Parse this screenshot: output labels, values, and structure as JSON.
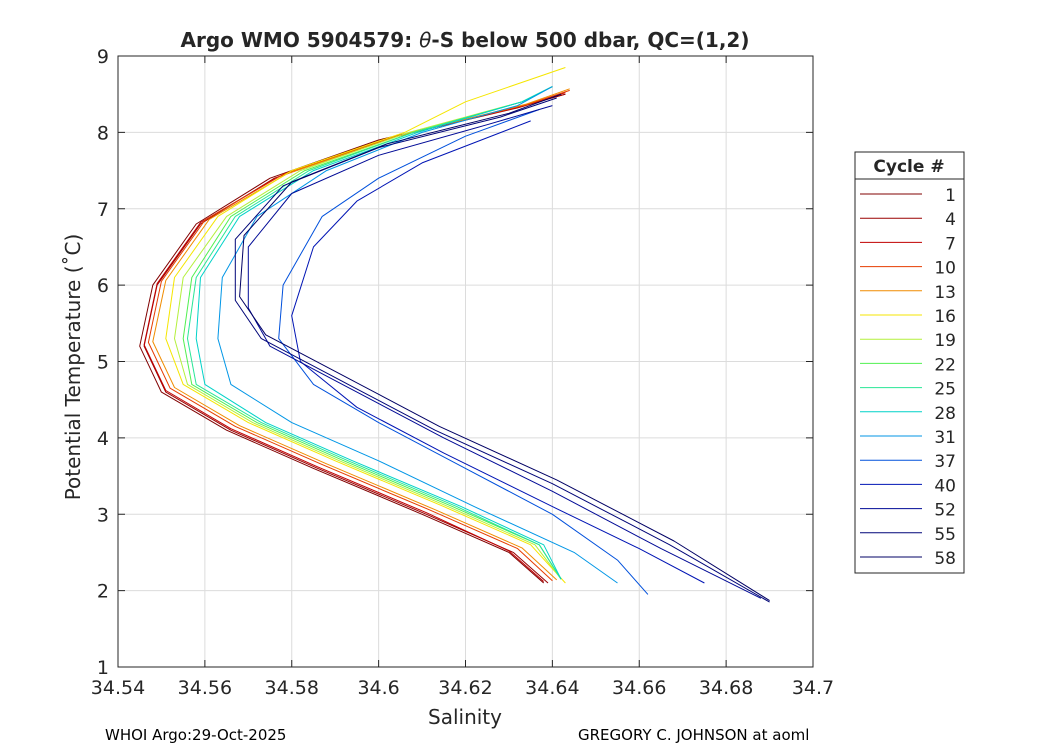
{
  "chart_data": {
    "type": "line",
    "title_parts": [
      "Argo WMO 5904579: ",
      "θ",
      "-S below 500 dbar,  QC=(1,2)"
    ],
    "xlabel": "Salinity",
    "ylabel": "Potential Temperature (˚C)",
    "xlim": [
      34.54,
      34.7
    ],
    "ylim": [
      1,
      9
    ],
    "xticks": [
      34.54,
      34.56,
      34.58,
      34.6,
      34.62,
      34.64,
      34.66,
      34.68,
      34.7
    ],
    "xtick_labels": [
      "34.54",
      "34.56",
      "34.58",
      "34.6",
      "34.62",
      "34.64",
      "34.66",
      "34.68",
      "34.7"
    ],
    "yticks": [
      1,
      2,
      3,
      4,
      5,
      6,
      7,
      8,
      9
    ],
    "ytick_labels": [
      "1",
      "2",
      "3",
      "4",
      "5",
      "6",
      "7",
      "8",
      "9"
    ],
    "grid": true,
    "legend_title": "Cycle #",
    "legend_position": "outside-right",
    "series": [
      {
        "name": "1",
        "color": "#800000",
        "points": [
          [
            34.643,
            8.5
          ],
          [
            34.63,
            8.3
          ],
          [
            34.6,
            7.9
          ],
          [
            34.575,
            7.4
          ],
          [
            34.558,
            6.8
          ],
          [
            34.548,
            6.0
          ],
          [
            34.545,
            5.2
          ],
          [
            34.55,
            4.6
          ],
          [
            34.565,
            4.1
          ],
          [
            34.585,
            3.6
          ],
          [
            34.61,
            3.0
          ],
          [
            34.63,
            2.5
          ],
          [
            34.638,
            2.1
          ]
        ]
      },
      {
        "name": "4",
        "color": "#9a0000",
        "points": [
          [
            34.643,
            8.5
          ],
          [
            34.632,
            8.32
          ],
          [
            34.602,
            7.92
          ],
          [
            34.576,
            7.4
          ],
          [
            34.559,
            6.8
          ],
          [
            34.549,
            6.0
          ],
          [
            34.546,
            5.2
          ],
          [
            34.551,
            4.6
          ],
          [
            34.566,
            4.1
          ],
          [
            34.586,
            3.6
          ],
          [
            34.611,
            3.0
          ],
          [
            34.631,
            2.5
          ],
          [
            34.639,
            2.1
          ]
        ]
      },
      {
        "name": "7",
        "color": "#c00000",
        "points": [
          [
            34.643,
            8.52
          ],
          [
            34.633,
            8.34
          ],
          [
            34.603,
            7.93
          ],
          [
            34.577,
            7.42
          ],
          [
            34.559,
            6.82
          ],
          [
            34.549,
            6.02
          ],
          [
            34.546,
            5.22
          ],
          [
            34.551,
            4.62
          ],
          [
            34.566,
            4.12
          ],
          [
            34.586,
            3.62
          ],
          [
            34.611,
            3.02
          ],
          [
            34.63,
            2.52
          ],
          [
            34.638,
            2.12
          ]
        ]
      },
      {
        "name": "10",
        "color": "#e63c00",
        "points": [
          [
            34.644,
            8.55
          ],
          [
            34.634,
            8.36
          ],
          [
            34.604,
            7.95
          ],
          [
            34.578,
            7.45
          ],
          [
            34.56,
            6.85
          ],
          [
            34.55,
            6.05
          ],
          [
            34.547,
            5.25
          ],
          [
            34.552,
            4.65
          ],
          [
            34.567,
            4.15
          ],
          [
            34.587,
            3.65
          ],
          [
            34.612,
            3.05
          ],
          [
            34.632,
            2.55
          ],
          [
            34.64,
            2.13
          ]
        ]
      },
      {
        "name": "13",
        "color": "#f08c00",
        "points": [
          [
            34.644,
            8.57
          ],
          [
            34.634,
            8.37
          ],
          [
            34.605,
            7.96
          ],
          [
            34.579,
            7.46
          ],
          [
            34.561,
            6.86
          ],
          [
            34.551,
            6.06
          ],
          [
            34.548,
            5.26
          ],
          [
            34.553,
            4.66
          ],
          [
            34.568,
            4.16
          ],
          [
            34.588,
            3.66
          ],
          [
            34.613,
            3.06
          ],
          [
            34.633,
            2.56
          ],
          [
            34.641,
            2.14
          ]
        ]
      },
      {
        "name": "16",
        "color": "#f5e600",
        "points": [
          [
            34.643,
            8.85
          ],
          [
            34.62,
            8.4
          ],
          [
            34.606,
            8.0
          ],
          [
            34.58,
            7.5
          ],
          [
            34.563,
            6.9
          ],
          [
            34.553,
            6.1
          ],
          [
            34.551,
            5.3
          ],
          [
            34.555,
            4.7
          ],
          [
            34.57,
            4.2
          ],
          [
            34.59,
            3.7
          ],
          [
            34.615,
            3.1
          ],
          [
            34.635,
            2.6
          ],
          [
            34.643,
            2.1
          ]
        ]
      },
      {
        "name": "19",
        "color": "#b4f03c",
        "points": [
          [
            34.64,
            8.6
          ],
          [
            34.633,
            8.4
          ],
          [
            34.607,
            8.0
          ],
          [
            34.582,
            7.5
          ],
          [
            34.565,
            6.9
          ],
          [
            34.555,
            6.1
          ],
          [
            34.553,
            5.3
          ],
          [
            34.556,
            4.7
          ],
          [
            34.571,
            4.2
          ],
          [
            34.591,
            3.7
          ],
          [
            34.616,
            3.1
          ],
          [
            34.636,
            2.6
          ],
          [
            34.642,
            2.15
          ]
        ]
      },
      {
        "name": "22",
        "color": "#50f050",
        "points": [
          [
            34.64,
            8.6
          ],
          [
            34.633,
            8.4
          ],
          [
            34.608,
            8.0
          ],
          [
            34.583,
            7.5
          ],
          [
            34.566,
            6.9
          ],
          [
            34.557,
            6.1
          ],
          [
            34.555,
            5.3
          ],
          [
            34.557,
            4.7
          ],
          [
            34.572,
            4.2
          ],
          [
            34.592,
            3.7
          ],
          [
            34.617,
            3.1
          ],
          [
            34.637,
            2.6
          ],
          [
            34.642,
            2.15
          ]
        ]
      },
      {
        "name": "25",
        "color": "#28e696",
        "points": [
          [
            34.64,
            8.6
          ],
          [
            34.633,
            8.4
          ],
          [
            34.608,
            8.0
          ],
          [
            34.584,
            7.5
          ],
          [
            34.567,
            6.9
          ],
          [
            34.558,
            6.1
          ],
          [
            34.556,
            5.3
          ],
          [
            34.558,
            4.7
          ],
          [
            34.573,
            4.2
          ],
          [
            34.593,
            3.7
          ],
          [
            34.618,
            3.1
          ],
          [
            34.637,
            2.6
          ],
          [
            34.642,
            2.15
          ]
        ]
      },
      {
        "name": "28",
        "color": "#00d2c8",
        "points": [
          [
            34.64,
            8.6
          ],
          [
            34.633,
            8.4
          ],
          [
            34.609,
            8.0
          ],
          [
            34.585,
            7.5
          ],
          [
            34.568,
            6.9
          ],
          [
            34.559,
            6.1
          ],
          [
            34.558,
            5.3
          ],
          [
            34.56,
            4.7
          ],
          [
            34.574,
            4.2
          ],
          [
            34.594,
            3.7
          ],
          [
            34.619,
            3.1
          ],
          [
            34.638,
            2.6
          ],
          [
            34.642,
            2.15
          ]
        ]
      },
      {
        "name": "31",
        "color": "#0096e6",
        "points": [
          [
            34.64,
            8.6
          ],
          [
            34.632,
            8.35
          ],
          [
            34.61,
            8.0
          ],
          [
            34.588,
            7.5
          ],
          [
            34.572,
            6.9
          ],
          [
            34.564,
            6.1
          ],
          [
            34.563,
            5.3
          ],
          [
            34.566,
            4.7
          ],
          [
            34.58,
            4.2
          ],
          [
            34.6,
            3.7
          ],
          [
            34.622,
            3.1
          ],
          [
            34.645,
            2.5
          ],
          [
            34.655,
            2.1
          ]
        ]
      },
      {
        "name": "37",
        "color": "#0050dc",
        "points": [
          [
            34.637,
            8.3
          ],
          [
            34.62,
            7.95
          ],
          [
            34.6,
            7.4
          ],
          [
            34.587,
            6.9
          ],
          [
            34.578,
            6.0
          ],
          [
            34.577,
            5.3
          ],
          [
            34.585,
            4.7
          ],
          [
            34.6,
            4.2
          ],
          [
            34.62,
            3.6
          ],
          [
            34.64,
            3.0
          ],
          [
            34.655,
            2.4
          ],
          [
            34.662,
            1.95
          ]
        ]
      },
      {
        "name": "40",
        "color": "#0014b4",
        "points": [
          [
            34.635,
            8.15
          ],
          [
            34.61,
            7.6
          ],
          [
            34.595,
            7.1
          ],
          [
            34.585,
            6.5
          ],
          [
            34.58,
            5.6
          ],
          [
            34.582,
            5.0
          ],
          [
            34.595,
            4.4
          ],
          [
            34.615,
            3.8
          ],
          [
            34.64,
            3.1
          ],
          [
            34.66,
            2.55
          ],
          [
            34.675,
            2.1
          ]
        ]
      },
      {
        "name": "52",
        "color": "#000a96",
        "points": [
          [
            34.64,
            8.35
          ],
          [
            34.625,
            8.1
          ],
          [
            34.6,
            7.7
          ],
          [
            34.58,
            7.2
          ],
          [
            34.57,
            6.5
          ],
          [
            34.57,
            5.7
          ],
          [
            34.575,
            5.2
          ],
          [
            34.595,
            4.6
          ],
          [
            34.615,
            4.0
          ],
          [
            34.64,
            3.3
          ],
          [
            34.665,
            2.55
          ],
          [
            34.688,
            1.9
          ]
        ]
      },
      {
        "name": "55",
        "color": "#000578",
        "points": [
          [
            34.641,
            8.45
          ],
          [
            34.628,
            8.2
          ],
          [
            34.6,
            7.8
          ],
          [
            34.578,
            7.3
          ],
          [
            34.567,
            6.6
          ],
          [
            34.567,
            5.8
          ],
          [
            34.573,
            5.3
          ],
          [
            34.593,
            4.7
          ],
          [
            34.613,
            4.1
          ],
          [
            34.64,
            3.4
          ],
          [
            34.667,
            2.6
          ],
          [
            34.69,
            1.85
          ]
        ]
      },
      {
        "name": "58",
        "color": "#000064",
        "points": [
          [
            34.642,
            8.5
          ],
          [
            34.63,
            8.25
          ],
          [
            34.602,
            7.85
          ],
          [
            34.58,
            7.35
          ],
          [
            34.569,
            6.65
          ],
          [
            34.568,
            5.85
          ],
          [
            34.574,
            5.35
          ],
          [
            34.594,
            4.75
          ],
          [
            34.614,
            4.15
          ],
          [
            34.641,
            3.45
          ],
          [
            34.668,
            2.65
          ],
          [
            34.69,
            1.87
          ]
        ]
      }
    ]
  },
  "footer": {
    "left": "WHOI Argo:29-Oct-2025",
    "right": "GREGORY C. JOHNSON at aoml"
  }
}
